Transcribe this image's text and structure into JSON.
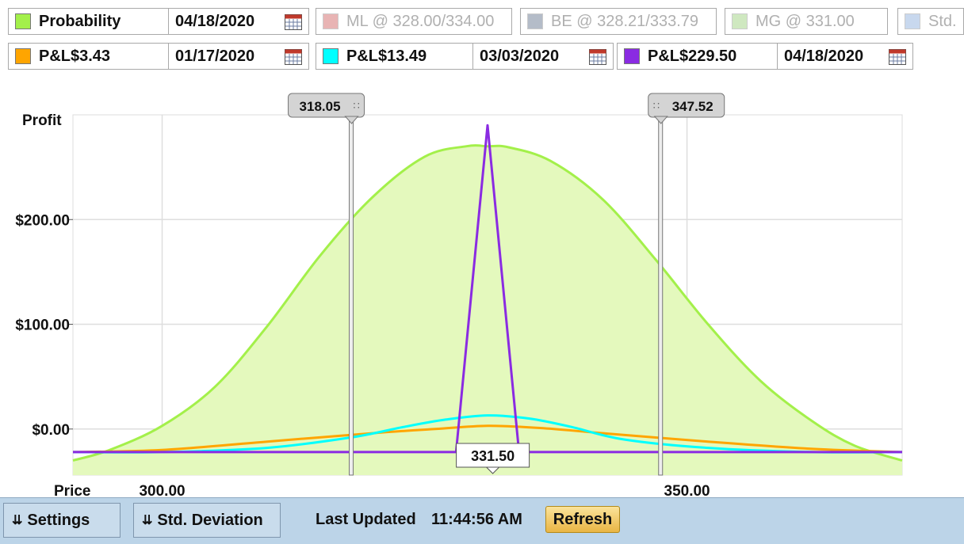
{
  "legend": {
    "row1": [
      {
        "label": "Probability",
        "color": "#a3f04a",
        "dim": false,
        "date": "04/18/2020"
      },
      {
        "label": "ML @ 328.00/334.00",
        "color": "#e8b4b4",
        "dim": true
      },
      {
        "label": "BE @ 328.21/333.79",
        "color": "#b4bcc8",
        "dim": true
      },
      {
        "label": "MG @ 331.00",
        "color": "#cfe8c0",
        "dim": true
      },
      {
        "label": "Std.",
        "color": "#c8d8ee",
        "dim": true
      }
    ],
    "row2": [
      {
        "label": "P&L",
        "value": "$3.43",
        "color": "#ffa500",
        "date": "01/17/2020"
      },
      {
        "label": "P&L",
        "value": "$13.49",
        "color": "#00ffff",
        "date": "03/03/2020"
      },
      {
        "label": "P&L",
        "value": "$229.50",
        "color": "#8a2be2",
        "date": "04/18/2020"
      }
    ]
  },
  "chart_data": {
    "type": "line",
    "ylabel": "Profit",
    "xlabel": "Price",
    "y_ticks": [
      "$200.00",
      "$100.00",
      "$0.00"
    ],
    "y_tick_values": [
      200,
      100,
      0
    ],
    "x_ticks": [
      "300.00",
      "350.00"
    ],
    "x_tick_values": [
      300,
      350
    ],
    "xlim": [
      291.5,
      370.5
    ],
    "ylim": [
      -44,
      300
    ],
    "grid": true,
    "markers": [
      {
        "label": "318.05",
        "value": 318.05
      },
      {
        "label": "347.52",
        "value": 347.52
      }
    ],
    "price_marker": {
      "label": "331.50",
      "value": 331.5
    },
    "series": [
      {
        "name": "Probability",
        "color": "#a3f04a",
        "fill": "#e4f9bd",
        "x": [
          291.5,
          295,
          300,
          305,
          310,
          315,
          320,
          325,
          329,
          331,
          333,
          337,
          342,
          347,
          352,
          357,
          362,
          366,
          370.5
        ],
        "y": [
          -30,
          -20,
          3,
          40,
          98,
          165,
          221,
          260,
          270,
          270,
          269,
          256,
          219,
          162,
          100,
          46,
          7,
          -16,
          -30
        ]
      },
      {
        "name": "P&L $3.43",
        "color": "#ffa500",
        "x": [
          291.5,
          300,
          310,
          320,
          326,
          331,
          336,
          342,
          352,
          362,
          370.5
        ],
        "y": [
          -22,
          -20,
          -12,
          -4,
          0,
          3,
          1,
          -4,
          -12,
          -19,
          -22
        ]
      },
      {
        "name": "P&L $13.49",
        "color": "#00ffff",
        "x": [
          291.5,
          300,
          310,
          318,
          323,
          327,
          331,
          335,
          339,
          344,
          352,
          362,
          370.5
        ],
        "y": [
          -22,
          -22,
          -18,
          -8,
          2,
          9,
          13,
          10,
          2,
          -10,
          -18,
          -22,
          -22
        ]
      },
      {
        "name": "P&L $229.50",
        "color": "#8a2be2",
        "x": [
          291.5,
          328,
          331,
          334,
          370.5
        ],
        "y": [
          -22,
          -22,
          290,
          -22,
          -22
        ]
      }
    ]
  },
  "footer": {
    "settings": "Settings",
    "std_dev": "Std. Deviation",
    "last_updated_label": "Last Updated",
    "time": "11:44:56 AM",
    "refresh": "Refresh"
  }
}
